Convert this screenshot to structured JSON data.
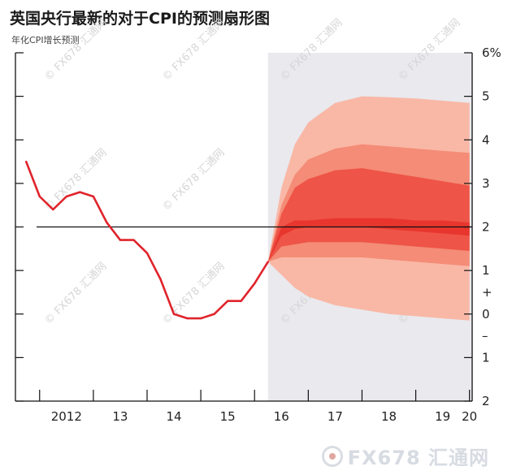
{
  "header": {
    "title": "英国央行最新的对于CPI的预测扇形图",
    "subtitle": "年化CPI增长预测"
  },
  "watermark": {
    "text": "© FX678 汇通网"
  },
  "brand": {
    "name": "FX678 汇通网"
  },
  "colors": {
    "line": "#e0242c",
    "forecast_bg": "#e9e9ee",
    "band_outer": "#f9b8a6",
    "band_mid": "#f48c77",
    "band_inner": "#ee5447",
    "band_core": "#e8362e"
  },
  "chart_data": {
    "type": "area",
    "title": "英国央行最新的对于CPI的预测扇形图",
    "ylabel": "年化CPI增长预测",
    "xlabel": "",
    "ylim": [
      -2,
      6
    ],
    "xlim": [
      2011.55,
      2020.05
    ],
    "x_tick_labels": [
      {
        "x": 2012.0,
        "label": "2012"
      },
      {
        "x": 2013.0,
        "label": "13"
      },
      {
        "x": 2014.0,
        "label": "14"
      },
      {
        "x": 2015.0,
        "label": "15"
      },
      {
        "x": 2016.0,
        "label": "16"
      },
      {
        "x": 2017.0,
        "label": "17"
      },
      {
        "x": 2018.0,
        "label": "18"
      },
      {
        "x": 2019.0,
        "label": "19"
      },
      {
        "x": 2020.0,
        "label": "20"
      }
    ],
    "y_tick_labels": [
      {
        "y": 6,
        "label": "6%"
      },
      {
        "y": 5,
        "label": "5"
      },
      {
        "y": 4,
        "label": "4"
      },
      {
        "y": 3,
        "label": "3"
      },
      {
        "y": 2,
        "label": "2"
      },
      {
        "y": 1,
        "label": "1"
      },
      {
        "y": 0.5,
        "label": "+"
      },
      {
        "y": 0,
        "label": "0"
      },
      {
        "y": -0.5,
        "label": "–"
      },
      {
        "y": -1,
        "label": "1"
      },
      {
        "y": -2,
        "label": "2"
      }
    ],
    "reference_line": {
      "y": 2
    },
    "forecast_start": 2016.25,
    "grid": false,
    "series": [
      {
        "x": [
          2011.75,
          2012.0,
          2012.25,
          2012.5,
          2012.75,
          2013.0,
          2013.25,
          2013.5,
          2013.75,
          2014.0,
          2014.25,
          2014.5,
          2014.75,
          2015.0,
          2015.25,
          2015.5,
          2015.75,
          2016.0,
          2016.25
        ],
        "values": [
          3.5,
          2.7,
          2.4,
          2.7,
          2.8,
          2.7,
          2.1,
          1.7,
          1.7,
          1.4,
          0.8,
          0.0,
          -0.1,
          -0.1,
          0.0,
          0.3,
          0.3,
          0.7,
          1.2
        ]
      }
    ],
    "fan": {
      "x": [
        2016.25,
        2016.5,
        2016.75,
        2017.0,
        2017.5,
        2018.0,
        2018.5,
        2019.0,
        2019.5,
        2020.0
      ],
      "bands": [
        {
          "lower": [
            1.2,
            0.9,
            0.6,
            0.4,
            0.2,
            0.1,
            0.0,
            -0.05,
            -0.1,
            -0.15
          ],
          "upper": [
            1.2,
            2.9,
            3.9,
            4.4,
            4.85,
            5.0,
            4.98,
            4.95,
            4.9,
            4.85
          ]
        },
        {
          "lower": [
            1.2,
            1.3,
            1.3,
            1.3,
            1.3,
            1.3,
            1.25,
            1.2,
            1.15,
            1.1
          ],
          "upper": [
            1.2,
            2.5,
            3.2,
            3.55,
            3.8,
            3.9,
            3.85,
            3.8,
            3.75,
            3.7
          ]
        },
        {
          "lower": [
            1.2,
            1.55,
            1.6,
            1.65,
            1.65,
            1.65,
            1.6,
            1.55,
            1.5,
            1.45
          ],
          "upper": [
            1.2,
            2.3,
            2.9,
            3.1,
            3.3,
            3.35,
            3.25,
            3.15,
            3.05,
            2.95
          ]
        },
        {
          "lower": [
            1.2,
            1.8,
            1.95,
            2.0,
            2.0,
            2.0,
            1.95,
            1.9,
            1.85,
            1.8
          ],
          "upper": [
            1.2,
            2.0,
            2.15,
            2.15,
            2.2,
            2.2,
            2.2,
            2.15,
            2.15,
            2.1
          ]
        }
      ]
    }
  }
}
